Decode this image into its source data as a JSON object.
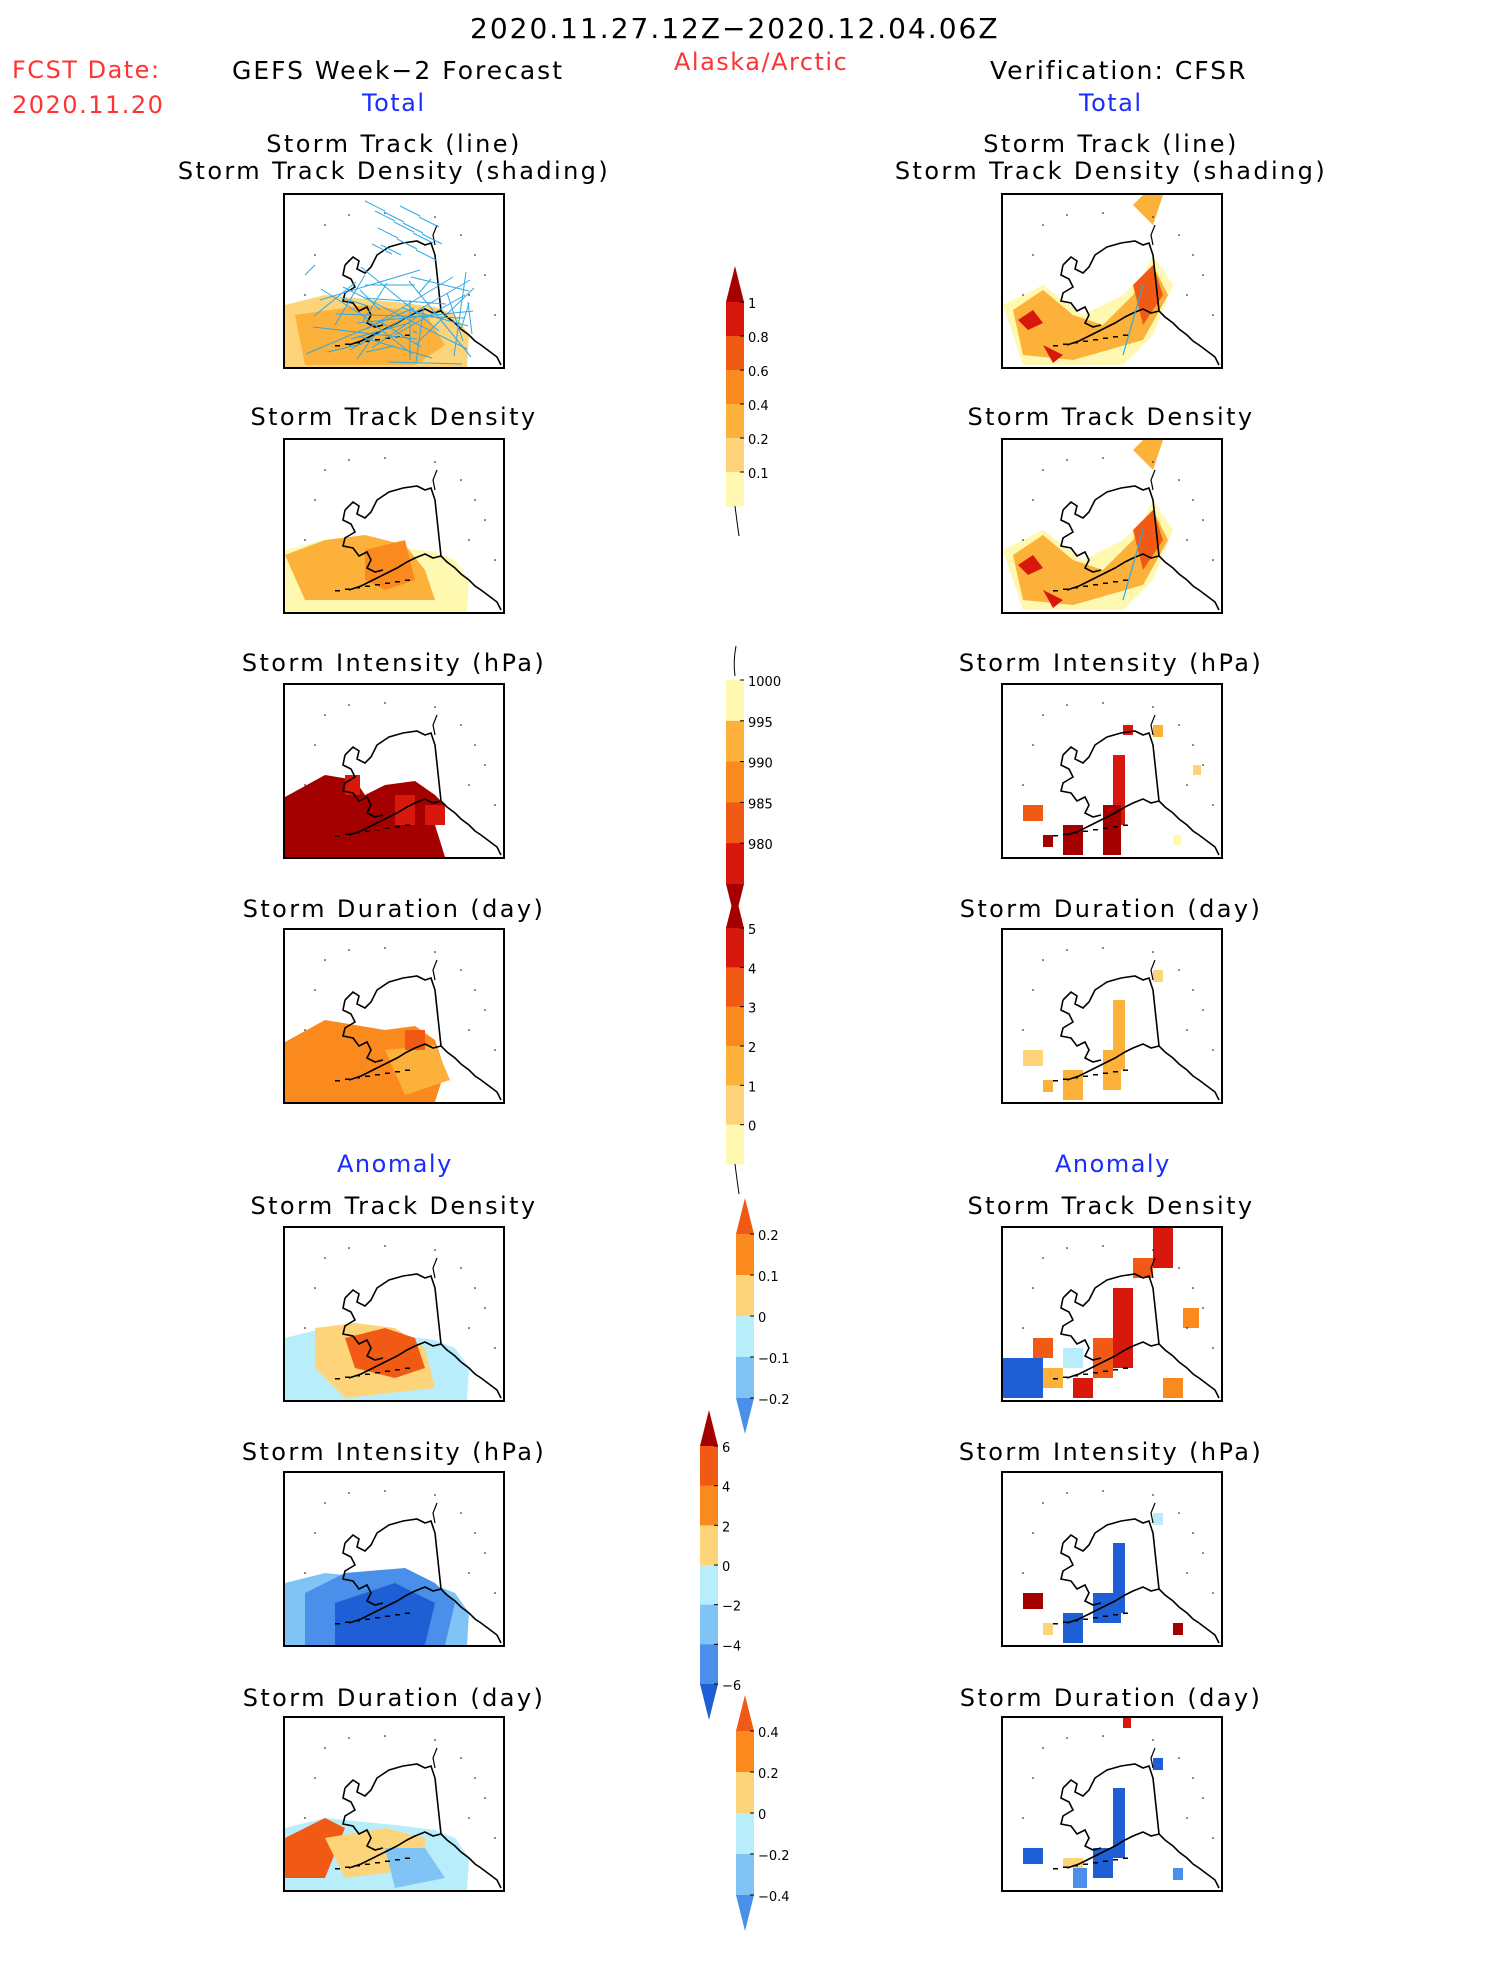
{
  "header": {
    "date_range": "2020.11.27.12Z−2020.12.04.06Z",
    "fcst_label": "FCST Date:",
    "fcst_date": "2020.11.20",
    "left_title": "GEFS Week−2 Forecast",
    "region": "Alaska/Arctic",
    "right_title": "Verification: CFSR",
    "total_label": "Total",
    "anomaly_label": "Anomaly"
  },
  "panel_titles": {
    "track_line": "Storm Track (line)",
    "track_shading": "Storm Track Density (shading)",
    "density": "Storm Track Density",
    "intensity": "Storm Intensity (hPa)",
    "duration": "Storm Duration (day)"
  },
  "colors": {
    "c_pale_yellow": "#fff8b0",
    "c_light_orange": "#fdd47a",
    "c_orange": "#fcb13a",
    "c_dark_orange": "#fb8a1e",
    "c_orange_red": "#f05a14",
    "c_red": "#d8180c",
    "c_dark_red": "#a50000",
    "c_light_blue": "#b8eefc",
    "c_mid_blue": "#7fc4f5",
    "c_blue": "#4a90ea",
    "c_dark_blue": "#1e5fd6",
    "track_lines": "#30a8e8"
  },
  "chart_data": [
    {
      "type": "heatmap",
      "title": "Storm Track (line) / Storm Track Density (shading)",
      "source": "GEFS Week-2 Forecast",
      "variable": "Total",
      "overlay": "storm tracks"
    },
    {
      "type": "heatmap",
      "title": "Storm Track (line) / Storm Track Density (shading)",
      "source": "Verification: CFSR",
      "variable": "Total",
      "overlay": "storm tracks"
    },
    {
      "type": "heatmap",
      "title": "Storm Track Density",
      "source": "GEFS Week-2 Forecast",
      "variable": "Total"
    },
    {
      "type": "heatmap",
      "title": "Storm Track Density",
      "source": "Verification: CFSR",
      "variable": "Total"
    },
    {
      "type": "heatmap",
      "title": "Storm Intensity (hPa)",
      "source": "GEFS Week-2 Forecast",
      "variable": "Total"
    },
    {
      "type": "heatmap",
      "title": "Storm Intensity (hPa)",
      "source": "Verification: CFSR",
      "variable": "Total"
    },
    {
      "type": "heatmap",
      "title": "Storm Duration (day)",
      "source": "GEFS Week-2 Forecast",
      "variable": "Total"
    },
    {
      "type": "heatmap",
      "title": "Storm Duration (day)",
      "source": "Verification: CFSR",
      "variable": "Total"
    },
    {
      "type": "heatmap",
      "title": "Storm Track Density",
      "source": "GEFS Week-2 Forecast",
      "variable": "Anomaly"
    },
    {
      "type": "heatmap",
      "title": "Storm Track Density",
      "source": "Verification: CFSR",
      "variable": "Anomaly"
    },
    {
      "type": "heatmap",
      "title": "Storm Intensity (hPa)",
      "source": "GEFS Week-2 Forecast",
      "variable": "Anomaly"
    },
    {
      "type": "heatmap",
      "title": "Storm Intensity (hPa)",
      "source": "Verification: CFSR",
      "variable": "Anomaly"
    },
    {
      "type": "heatmap",
      "title": "Storm Duration (day)",
      "source": "GEFS Week-2 Forecast",
      "variable": "Anomaly"
    },
    {
      "type": "heatmap",
      "title": "Storm Duration (day)",
      "source": "Verification: CFSR",
      "variable": "Anomaly"
    }
  ],
  "colorbars": {
    "density": {
      "labels": [
        "1",
        "0.8",
        "0.6",
        "0.4",
        "0.2",
        "0.1"
      ],
      "colors": [
        "#a50000",
        "#d8180c",
        "#f05a14",
        "#fb8a1e",
        "#fcb13a",
        "#fdd47a",
        "#fff8b0"
      ],
      "top_arrow": true,
      "bottom_arrow": false
    },
    "intensity": {
      "labels": [
        "1000",
        "995",
        "990",
        "985",
        "980"
      ],
      "colors": [
        "#fff8b0",
        "#fcb13a",
        "#fb8a1e",
        "#f05a14",
        "#d8180c",
        "#a50000"
      ],
      "top_arrow": false,
      "bottom_arrow": true
    },
    "duration": {
      "labels": [
        "5",
        "4",
        "3",
        "2",
        "1",
        "0"
      ],
      "colors": [
        "#a50000",
        "#d8180c",
        "#f05a14",
        "#fb8a1e",
        "#fcb13a",
        "#fdd47a",
        "#fff8b0"
      ],
      "top_arrow": true,
      "bottom_arrow": false
    },
    "anom_density": {
      "labels": [
        "0.2",
        "0.1",
        "0",
        "−0.1",
        "−0.2"
      ],
      "colors": [
        "#f05a14",
        "#fb8a1e",
        "#fdd47a",
        "#b8eefc",
        "#7fc4f5",
        "#4a90ea"
      ],
      "top_arrow": true,
      "bottom_arrow": true
    },
    "anom_intensity": {
      "labels": [
        "6",
        "4",
        "2",
        "0",
        "−2",
        "−4",
        "−6"
      ],
      "colors": [
        "#a50000",
        "#f05a14",
        "#fb8a1e",
        "#fdd47a",
        "#b8eefc",
        "#7fc4f5",
        "#4a90ea",
        "#1e5fd6"
      ],
      "top_arrow": true,
      "bottom_arrow": true
    },
    "anom_duration": {
      "labels": [
        "0.4",
        "0.2",
        "0",
        "−0.2",
        "−0.4"
      ],
      "colors": [
        "#f05a14",
        "#fb8a1e",
        "#fdd47a",
        "#b8eefc",
        "#7fc4f5",
        "#4a90ea"
      ],
      "top_arrow": true,
      "bottom_arrow": true
    }
  }
}
